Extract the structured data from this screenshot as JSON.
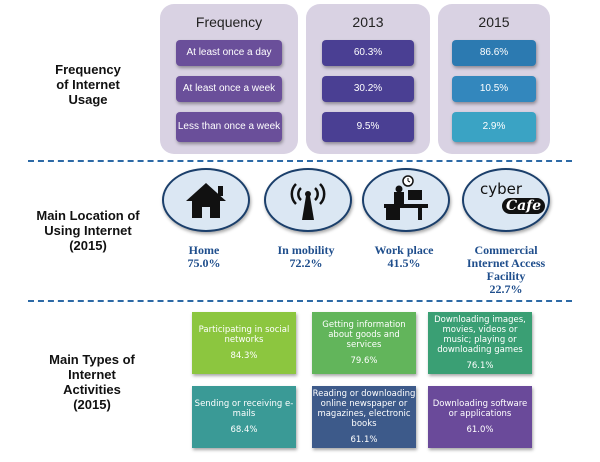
{
  "frequency_section": {
    "label": "Frequency\nof Internet\nUsage",
    "columns": [
      {
        "header": "Frequency",
        "cells": [
          "At least once a day",
          "At least once a week",
          "Less than once a week"
        ]
      },
      {
        "header": "2013",
        "cells": [
          "60.3%",
          "30.2%",
          "9.5%"
        ]
      },
      {
        "header": "2015",
        "cells": [
          "86.6%",
          "10.5%",
          "2.9%"
        ]
      }
    ],
    "colors": {
      "panel": "#d9d2e3",
      "frequency_box": "#6a4f9a",
      "y2013_box": "#4a3f93",
      "y2015_boxes": [
        "#2c7ab1",
        "#3387bd",
        "#3aa3c4"
      ]
    }
  },
  "location_section": {
    "label": "Main Location of\nUsing Internet\n(2015)",
    "locations": [
      {
        "icon": "house-icon",
        "name": "Home",
        "value": "75.0%"
      },
      {
        "icon": "antenna-icon",
        "name": "In mobility",
        "value": "72.2%"
      },
      {
        "icon": "workplace-desk-icon",
        "name": "Work place",
        "value": "41.5%"
      },
      {
        "icon": "cyber-cafe-icon",
        "name": "Commercial\nInternet Access\nFacility",
        "value": "22.7%",
        "logo_text": "cyber",
        "logo_script": "Cafe"
      }
    ]
  },
  "activities_section": {
    "label": "Main Types of\nInternet\nActivities\n(2015)",
    "activities": [
      {
        "text": "Participating in social networks",
        "value": "84.3%",
        "color": "#8cc63f"
      },
      {
        "text": "Getting information about goods and services",
        "value": "79.6%",
        "color": "#62b55b"
      },
      {
        "text": "Downloading images, movies, videos or music; playing or downloading games",
        "value": "76.1%",
        "color": "#3a9f74"
      },
      {
        "text": "Sending or receiving e-mails",
        "value": "68.4%",
        "color": "#3a9a96"
      },
      {
        "text": "Reading or downloading online newspaper or magazines, electronic books",
        "value": "61.1%",
        "color": "#3d5a8a"
      },
      {
        "text": "Downloading software or applications",
        "value": "61.0%",
        "color": "#6a4a9a"
      }
    ]
  }
}
